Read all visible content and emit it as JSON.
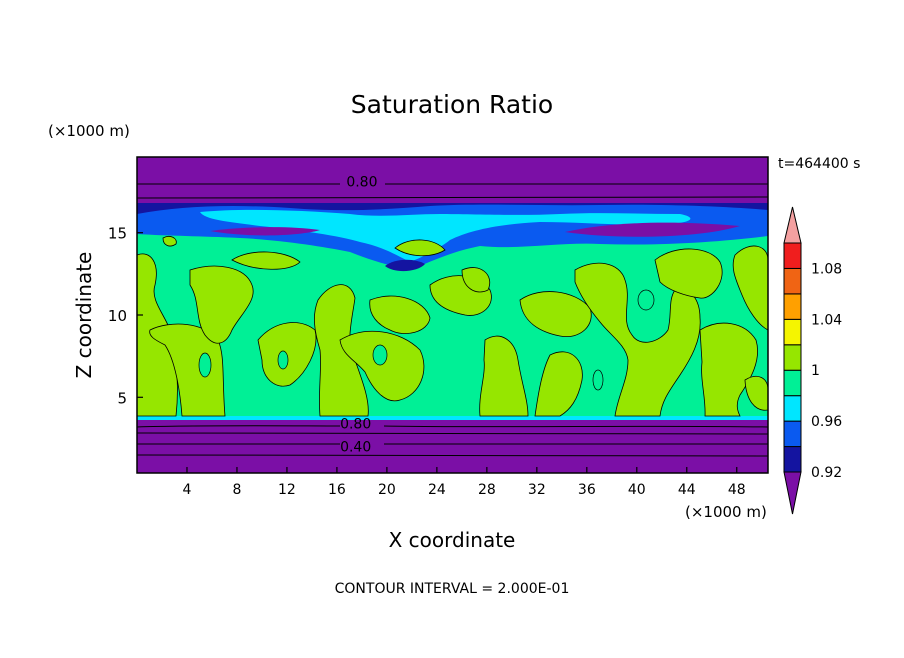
{
  "chart_data": {
    "type": "heatmap",
    "title": "Saturation Ratio",
    "xlabel": "X coordinate",
    "ylabel": "Z coordinate",
    "x_unit": "(×1000 m)",
    "y_unit": "(×1000 m)",
    "time_label": "t=464400 s",
    "contour_interval_text": "CONTOUR INTERVAL = 2.000E-01",
    "xlim": [
      0,
      50.5
    ],
    "ylim": [
      0.4,
      19.6
    ],
    "x_ticks": [
      4,
      8,
      12,
      16,
      20,
      24,
      28,
      32,
      36,
      40,
      44,
      48
    ],
    "y_ticks": [
      5,
      10,
      15
    ],
    "contour_labels": [
      {
        "text": "0.80",
        "x": 18,
        "z": 18.1
      },
      {
        "text": "0.80",
        "x": 17.5,
        "z": 3.4
      },
      {
        "text": "0.40",
        "x": 17.5,
        "z": 2.0
      }
    ],
    "colorbar": {
      "levels": [
        0.92,
        0.94,
        0.96,
        0.98,
        1.0,
        1.02,
        1.04,
        1.06,
        1.08,
        1.1
      ],
      "tick_labels": [
        "0.92",
        "0.96",
        "1",
        "1.04",
        "1.08"
      ],
      "colors": [
        "#7b0fa6",
        "#1414a0",
        "#0a5af0",
        "#00e6ff",
        "#00f096",
        "#96e600",
        "#f5f500",
        "#ffa000",
        "#f06414",
        "#f01e1e",
        "#f4a0a0"
      ]
    },
    "regions": {
      "stratosphere_band": {
        "z": [
          16.5,
          19.6
        ],
        "value": "<0.92"
      },
      "dry_layer": {
        "z": [
          0.4,
          3.6
        ],
        "value": "<0.92"
      },
      "moist_layer": {
        "z": [
          3.6,
          15.0
        ],
        "value": "0.98-1.0"
      },
      "patches_value": "1.0-1.02"
    }
  }
}
